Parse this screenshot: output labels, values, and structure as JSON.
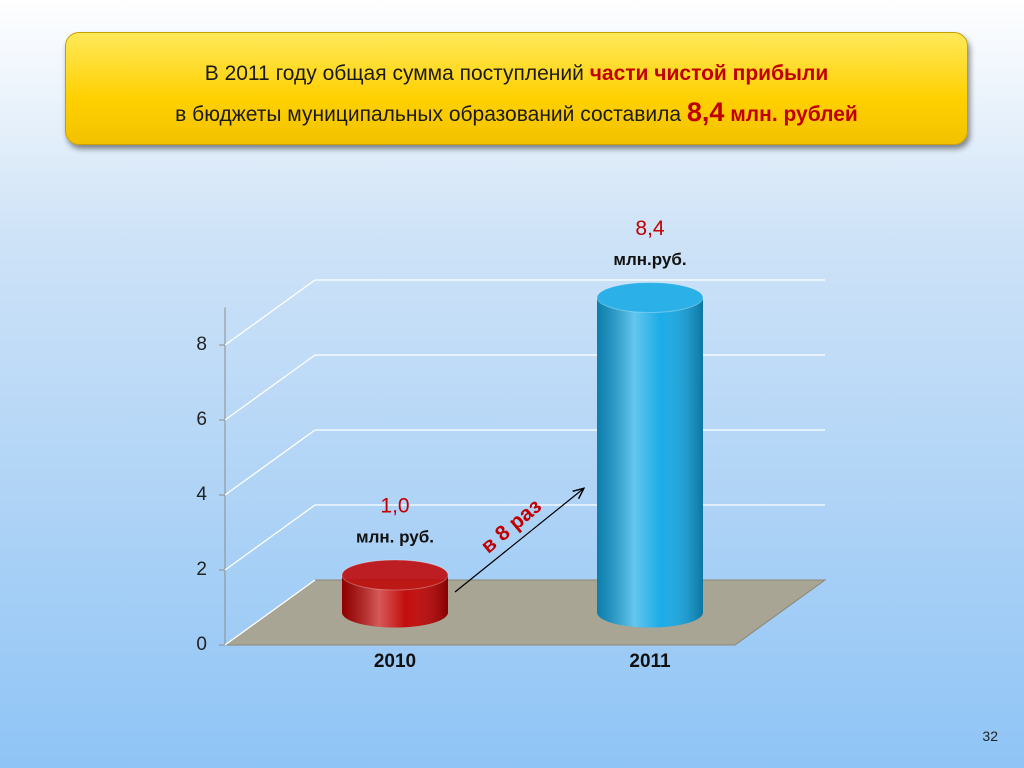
{
  "header": {
    "line1": [
      "В 2011 году общая сумма поступлений",
      "части чистой прибыли"
    ],
    "line2": [
      "в бюджеты муниципальных образований составила",
      "8,4",
      "млн. рублей"
    ]
  },
  "chart_data": {
    "type": "bar3d",
    "categories": [
      "2010",
      "2011"
    ],
    "values": [
      1.0,
      8.4
    ],
    "value_labels": [
      "1,0",
      "8,4"
    ],
    "value_units": [
      "млн. руб.",
      "млн.руб."
    ],
    "colors": [
      "#c00000",
      "#10a8e6"
    ],
    "label_color": "#c00000",
    "ylim": [
      0,
      9
    ],
    "yticks": [
      0,
      2,
      4,
      6,
      8
    ],
    "grid": true,
    "annotation": "в 8 раз"
  },
  "slide_number": "32"
}
